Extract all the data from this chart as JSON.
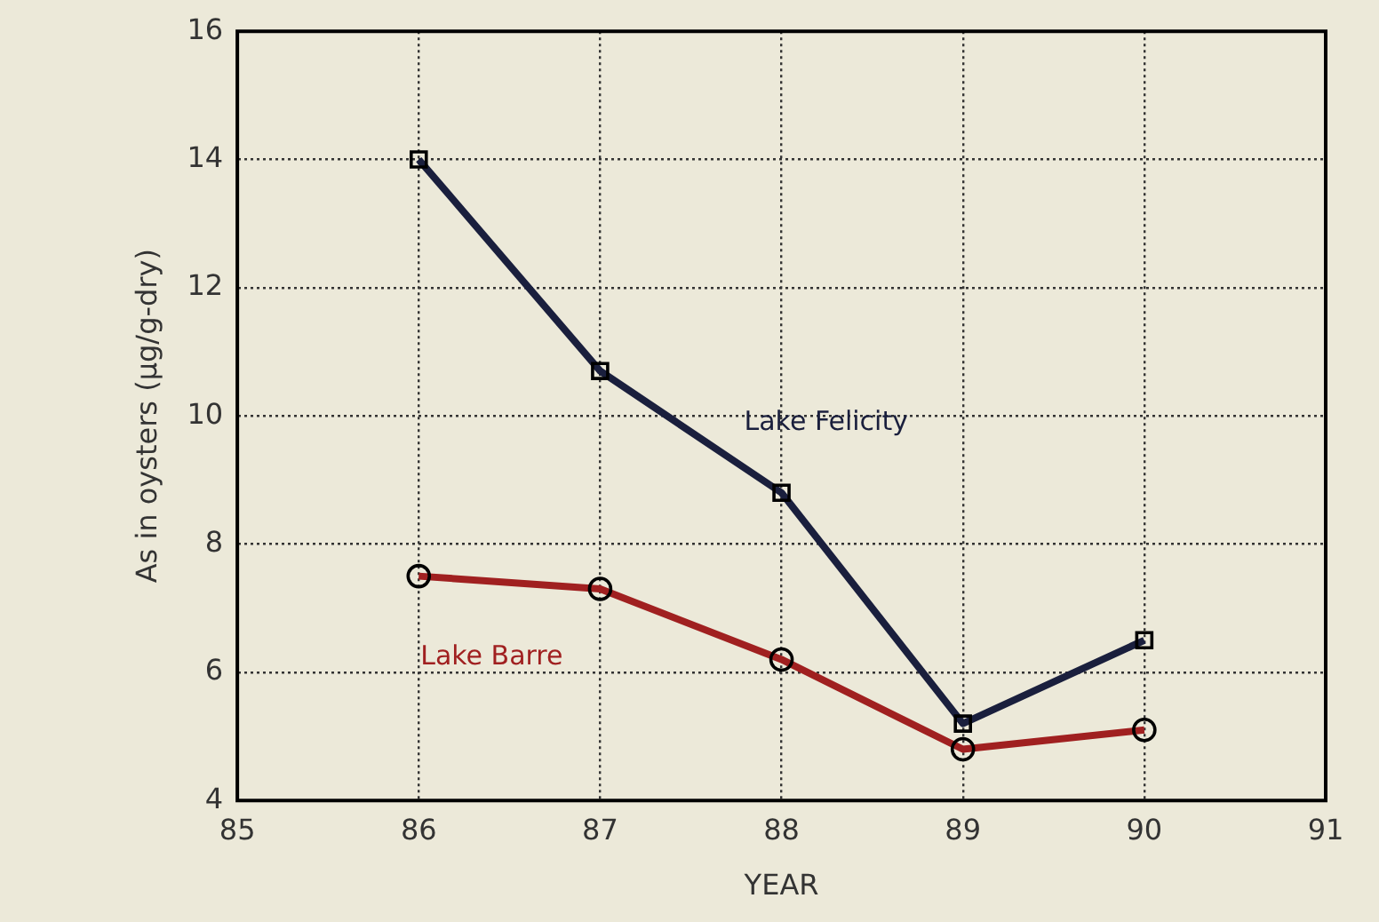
{
  "chart_data": {
    "type": "line",
    "xlabel": "YEAR",
    "ylabel": "As in oysters (µg/g-dry)",
    "x": [
      86,
      87,
      88,
      89,
      90
    ],
    "series": [
      {
        "name": "Lake Felicity",
        "color": "#1a1f3d",
        "values": [
          14.0,
          10.7,
          8.8,
          5.2,
          6.5
        ],
        "marker": "square"
      },
      {
        "name": "Lake Barre",
        "color": "#a02020",
        "values": [
          7.5,
          7.3,
          6.2,
          4.8,
          5.1
        ],
        "marker": "circle"
      }
    ],
    "xlim": [
      85,
      91
    ],
    "xticks": [
      85,
      86,
      87,
      88,
      89,
      90,
      91
    ],
    "ylim": [
      4,
      16
    ],
    "yticks": [
      4,
      6,
      8,
      10,
      12,
      14,
      16
    ],
    "grid": true,
    "legend": false,
    "line_style": "solid"
  }
}
